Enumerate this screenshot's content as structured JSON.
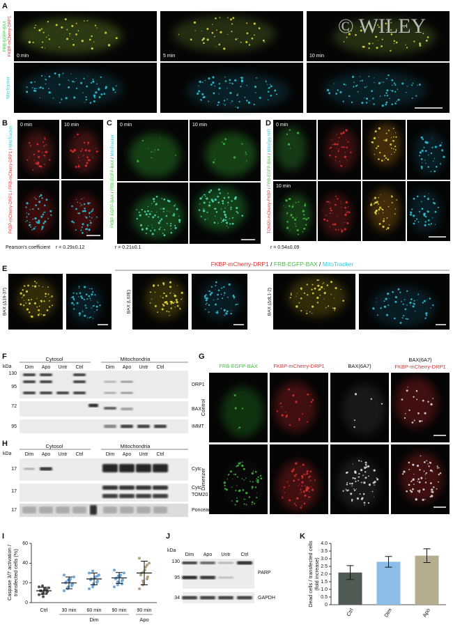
{
  "panel_a": {
    "label": "A",
    "row1_labels": [
      "FRB-EGFP-BAX",
      "FKBP-mCherry-DRP1"
    ],
    "row2_label": "MitoTracker",
    "times": [
      "0 min",
      "5 min",
      "10 min"
    ],
    "watermark": "© WILEY"
  },
  "panel_b": {
    "label": "B",
    "times": [
      "0 min",
      "10 min"
    ],
    "channel_parts": [
      "FKBP-mCherry-DRP1",
      " / ",
      "FRB-mCherry-DRP1",
      " / ",
      "MitoTracker"
    ],
    "stat_label": "Pearson's coefficient",
    "stat": "r = 0.29±0.12"
  },
  "panel_c": {
    "label": "C",
    "times": [
      "0 min",
      "10 min"
    ],
    "channel_parts": [
      "FKBP-EGFP-BAX",
      " / ",
      "FRB-EGFP-BAX",
      " / ",
      "MitoTracker"
    ],
    "stat": "r = 0.21±0.1"
  },
  "panel_d": {
    "label": "D",
    "times": [
      "0 min",
      "10 min"
    ],
    "channel_parts": [
      "TOM20-mCherry-FKBP",
      " / ",
      "FRB-EGFP-BAX",
      " / ",
      "MitoSpy NIR"
    ],
    "stat": "r = 0.54±0.09"
  },
  "panel_e": {
    "label": "E",
    "heading_parts": [
      "FKBP-mCherry-DRP1",
      " / ",
      "FRB-EGFP-BAX",
      " / ",
      "MitoTracker"
    ],
    "mutants": [
      "BAX (Δ19-37)",
      "BAX (L63E)",
      "BAX (ΔdL1-2)"
    ]
  },
  "panel_f": {
    "label": "F",
    "kda": "kDa",
    "fractions": [
      "Cytosol",
      "Mitochondria"
    ],
    "lanes": [
      "Dim",
      "Apo",
      "Untr",
      "Ctrl",
      "Dim",
      "Apo",
      "Untr",
      "Ctrl"
    ],
    "markers": [
      130,
      95,
      72,
      95
    ],
    "blots": [
      "DRP1",
      "BAX",
      "IMMT"
    ]
  },
  "panel_g": {
    "label": "G",
    "columns": [
      "FRB-EGFP-BAX",
      "FKBP-mCherry-DRP1",
      "BAX(6A7)"
    ],
    "merge_title": [
      "BAX(6A7)",
      "FKBP-mCherry-DRP1"
    ],
    "rows": [
      "Control",
      "Dimerizer"
    ]
  },
  "panel_h": {
    "label": "H",
    "kda": "kDa",
    "fractions": [
      "Cytosol",
      "Mitochondria"
    ],
    "lanes": [
      "Dim",
      "Apo",
      "Untr",
      "Ctrl",
      "Dim",
      "Apo",
      "Untr",
      "Ctrl"
    ],
    "markers": [
      17,
      17,
      17
    ],
    "blots": [
      "Cytc",
      "Cytc",
      "TOM20",
      "Ponceau S"
    ]
  },
  "panel_j": {
    "label": "J",
    "kda": "kDa",
    "lanes": [
      "Dim",
      "Apo",
      "Untr",
      "Ctrl"
    ],
    "markers": [
      130,
      95,
      34
    ],
    "blots": [
      "PARP",
      "GAPDH"
    ]
  },
  "chart_data": [
    {
      "label": "I",
      "type": "strip",
      "y_label": [
        "Caspase 3/7 activation /",
        "transfected cells (%)"
      ],
      "categories": [
        "Ctrl",
        "30 min",
        "60 min",
        "90 min",
        "90 min"
      ],
      "groups": [
        "Dim",
        "Apo"
      ],
      "points": [
        [
          8,
          9,
          10,
          10,
          11,
          12,
          12,
          13,
          14,
          15,
          16,
          17,
          6,
          13
        ],
        [
          12,
          14,
          16,
          18,
          19,
          20,
          21,
          22,
          24,
          26,
          28,
          15,
          23,
          17
        ],
        [
          14,
          16,
          18,
          20,
          22,
          23,
          24,
          25,
          26,
          28,
          30,
          32,
          19,
          21,
          27
        ],
        [
          16,
          18,
          20,
          22,
          23,
          24,
          25,
          26,
          28,
          30,
          33,
          21,
          27,
          19
        ],
        [
          14,
          18,
          20,
          24,
          26,
          28,
          30,
          33,
          36,
          40,
          45,
          22,
          31,
          38
        ]
      ],
      "means": [
        12,
        20,
        24,
        25,
        30
      ],
      "errors": [
        3.5,
        6,
        6,
        5.5,
        12
      ],
      "colors": [
        "#555555",
        "#6fa8dc",
        "#6fa8dc",
        "#6fa8dc",
        "#b3a384"
      ],
      "ylim": [
        0,
        60
      ],
      "yticks": [
        0,
        20,
        40,
        60
      ]
    },
    {
      "label": "K",
      "type": "bar",
      "y_label": [
        "Dead cells / transfected cells",
        "(fold increase)"
      ],
      "categories": [
        "Ctrl",
        "Dim",
        "Apo"
      ],
      "values": [
        2.1,
        2.8,
        3.2
      ],
      "errors": [
        0.45,
        0.35,
        0.45
      ],
      "colors": [
        "#4f5a52",
        "#8bbde6",
        "#b5ad8e"
      ],
      "ylim": [
        0,
        4
      ],
      "yticks": [
        0,
        0.5,
        {
          "value": 1,
          "label": "1.0"
        },
        1.5,
        {
          "value": 2,
          "label": "2.0"
        },
        2.5,
        {
          "value": 3,
          "label": "3.0"
        },
        3.5,
        {
          "value": 4,
          "label": "4.0"
        }
      ]
    }
  ]
}
